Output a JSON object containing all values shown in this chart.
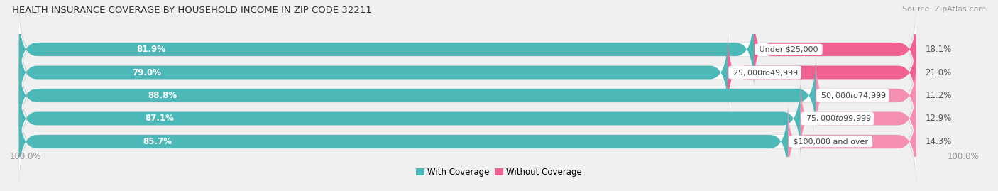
{
  "title": "HEALTH INSURANCE COVERAGE BY HOUSEHOLD INCOME IN ZIP CODE 32211",
  "source": "Source: ZipAtlas.com",
  "categories": [
    "Under $25,000",
    "$25,000 to $49,999",
    "$50,000 to $74,999",
    "$75,000 to $99,999",
    "$100,000 and over"
  ],
  "with_coverage": [
    81.9,
    79.0,
    88.8,
    87.1,
    85.7
  ],
  "without_coverage": [
    18.1,
    21.0,
    11.2,
    12.9,
    14.3
  ],
  "color_with": "#4db8b8",
  "color_without": "#f48fb1",
  "color_without_bright": "#f06090",
  "background_color": "#f0f0f0",
  "bar_bg_color": "#ffffff",
  "bar_shadow_color": "#d8d8d8",
  "title_fontsize": 9.5,
  "source_fontsize": 8,
  "label_fontsize": 8.5,
  "category_fontsize": 8,
  "legend_fontsize": 8.5,
  "bar_height": 0.62,
  "figsize": [
    14.06,
    2.69
  ]
}
